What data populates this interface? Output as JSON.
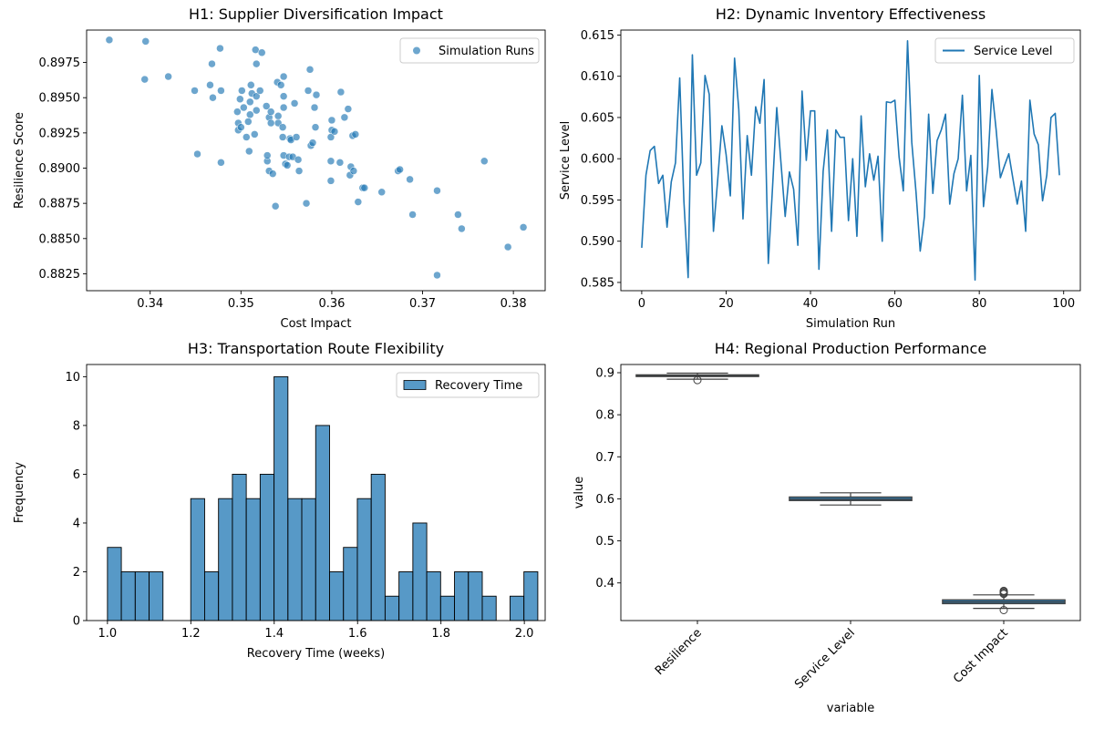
{
  "chart_data": [
    {
      "type": "scatter",
      "title": "H1: Supplier Diversification Impact",
      "xlabel": "Cost Impact",
      "ylabel": "Resilience Score",
      "xlim": [
        0.333,
        0.3835
      ],
      "ylim": [
        0.8813,
        0.8998
      ],
      "xticks": [
        0.34,
        0.35,
        0.36,
        0.37,
        0.38
      ],
      "xtick_labels": [
        "0.34",
        "0.35",
        "0.36",
        "0.37",
        "0.38"
      ],
      "yticks": [
        0.8825,
        0.885,
        0.8875,
        0.89,
        0.8925,
        0.895,
        0.8975
      ],
      "ytick_labels": [
        "0.8825",
        "0.8850",
        "0.8875",
        "0.8900",
        "0.8925",
        "0.8950",
        "0.8975"
      ],
      "legend": {
        "position": "upper right",
        "entries": [
          "Simulation Runs"
        ]
      },
      "color": "#1f77b4",
      "grid": false,
      "points": [
        [
          0.3355,
          0.8991
        ],
        [
          0.3395,
          0.899
        ],
        [
          0.3394,
          0.8963
        ],
        [
          0.342,
          0.8965
        ],
        [
          0.3449,
          0.8955
        ],
        [
          0.3452,
          0.891
        ],
        [
          0.3466,
          0.8959
        ],
        [
          0.3468,
          0.8974
        ],
        [
          0.3469,
          0.895
        ],
        [
          0.3477,
          0.8985
        ],
        [
          0.3478,
          0.8955
        ],
        [
          0.3478,
          0.8904
        ],
        [
          0.3496,
          0.894
        ],
        [
          0.3497,
          0.8932
        ],
        [
          0.3497,
          0.8927
        ],
        [
          0.3499,
          0.8949
        ],
        [
          0.35,
          0.8929
        ],
        [
          0.3501,
          0.8955
        ],
        [
          0.3503,
          0.8943
        ],
        [
          0.3506,
          0.8922
        ],
        [
          0.3508,
          0.8933
        ],
        [
          0.3509,
          0.8912
        ],
        [
          0.351,
          0.8947
        ],
        [
          0.351,
          0.8938
        ],
        [
          0.3511,
          0.8959
        ],
        [
          0.3512,
          0.8953
        ],
        [
          0.3515,
          0.8924
        ],
        [
          0.3516,
          0.8984
        ],
        [
          0.3517,
          0.8941
        ],
        [
          0.3517,
          0.8974
        ],
        [
          0.3517,
          0.8951
        ],
        [
          0.3521,
          0.8955
        ],
        [
          0.3523,
          0.8982
        ],
        [
          0.3528,
          0.8944
        ],
        [
          0.3529,
          0.8905
        ],
        [
          0.3529,
          0.8909
        ],
        [
          0.3531,
          0.8936
        ],
        [
          0.3531,
          0.8898
        ],
        [
          0.3533,
          0.894
        ],
        [
          0.3533,
          0.8932
        ],
        [
          0.3535,
          0.8896
        ],
        [
          0.3538,
          0.8873
        ],
        [
          0.354,
          0.8961
        ],
        [
          0.3541,
          0.8937
        ],
        [
          0.3541,
          0.8932
        ],
        [
          0.3544,
          0.8959
        ],
        [
          0.3546,
          0.8922
        ],
        [
          0.3546,
          0.8929
        ],
        [
          0.3547,
          0.8951
        ],
        [
          0.3547,
          0.8943
        ],
        [
          0.3547,
          0.8965
        ],
        [
          0.3547,
          0.8909
        ],
        [
          0.3549,
          0.8903
        ],
        [
          0.3551,
          0.8902
        ],
        [
          0.3553,
          0.8908
        ],
        [
          0.3554,
          0.8921
        ],
        [
          0.3555,
          0.892
        ],
        [
          0.3557,
          0.8908
        ],
        [
          0.3559,
          0.8946
        ],
        [
          0.3561,
          0.8922
        ],
        [
          0.3563,
          0.8906
        ],
        [
          0.3564,
          0.8898
        ],
        [
          0.3572,
          0.8875
        ],
        [
          0.3574,
          0.8955
        ],
        [
          0.3576,
          0.897
        ],
        [
          0.3577,
          0.8916
        ],
        [
          0.3579,
          0.8918
        ],
        [
          0.3581,
          0.8943
        ],
        [
          0.3582,
          0.8929
        ],
        [
          0.3583,
          0.8952
        ],
        [
          0.3599,
          0.8905
        ],
        [
          0.3599,
          0.8891
        ],
        [
          0.3599,
          0.8922
        ],
        [
          0.36,
          0.8934
        ],
        [
          0.36,
          0.8927
        ],
        [
          0.3603,
          0.8926
        ],
        [
          0.3609,
          0.8904
        ],
        [
          0.361,
          0.8954
        ],
        [
          0.3614,
          0.8936
        ],
        [
          0.3618,
          0.8942
        ],
        [
          0.362,
          0.8895
        ],
        [
          0.3621,
          0.8901
        ],
        [
          0.3623,
          0.8923
        ],
        [
          0.3624,
          0.8898
        ],
        [
          0.3626,
          0.8924
        ],
        [
          0.3629,
          0.8876
        ],
        [
          0.3634,
          0.8886
        ],
        [
          0.3636,
          0.8886
        ],
        [
          0.3655,
          0.8883
        ],
        [
          0.3673,
          0.8898
        ],
        [
          0.3675,
          0.8899
        ],
        [
          0.3686,
          0.8892
        ],
        [
          0.3689,
          0.8867
        ],
        [
          0.3716,
          0.8824
        ],
        [
          0.3716,
          0.8884
        ],
        [
          0.3739,
          0.8867
        ],
        [
          0.3743,
          0.8857
        ],
        [
          0.3768,
          0.8905
        ],
        [
          0.3794,
          0.8844
        ],
        [
          0.3811,
          0.8858
        ]
      ]
    },
    {
      "type": "line",
      "title": "H2: Dynamic Inventory Effectiveness",
      "xlabel": "Simulation Run",
      "ylabel": "Service Level",
      "xlim": [
        -4.95,
        103.95
      ],
      "ylim": [
        0.584,
        0.6156
      ],
      "xticks": [
        0,
        20,
        40,
        60,
        80,
        100
      ],
      "xtick_labels": [
        "0",
        "20",
        "40",
        "60",
        "80",
        "100"
      ],
      "yticks": [
        0.585,
        0.59,
        0.595,
        0.6,
        0.605,
        0.61,
        0.615
      ],
      "ytick_labels": [
        "0.585",
        "0.590",
        "0.595",
        "0.600",
        "0.605",
        "0.610",
        "0.615"
      ],
      "legend": {
        "position": "upper right",
        "entries": [
          "Service Level"
        ]
      },
      "color": "#1f77b4",
      "grid": false,
      "series": [
        {
          "name": "Service Level",
          "x_start": 0,
          "values": [
            0.5892,
            0.598,
            0.601,
            0.6015,
            0.597,
            0.598,
            0.5917,
            0.5972,
            0.5995,
            0.6098,
            0.5948,
            0.5856,
            0.6126,
            0.598,
            0.5995,
            0.6101,
            0.6078,
            0.5912,
            0.5974,
            0.604,
            0.6005,
            0.5955,
            0.6122,
            0.606,
            0.5927,
            0.6028,
            0.598,
            0.6063,
            0.6043,
            0.6096,
            0.5873,
            0.5965,
            0.6062,
            0.5995,
            0.593,
            0.5984,
            0.5963,
            0.5895,
            0.6082,
            0.5998,
            0.6058,
            0.6058,
            0.5866,
            0.5985,
            0.6035,
            0.5912,
            0.6035,
            0.6026,
            0.6026,
            0.5925,
            0.6,
            0.5906,
            0.6052,
            0.5966,
            0.6006,
            0.5974,
            0.6003,
            0.59,
            0.6069,
            0.6068,
            0.6071,
            0.6002,
            0.5961,
            0.6143,
            0.602,
            0.596,
            0.5888,
            0.593,
            0.6054,
            0.5958,
            0.6022,
            0.6035,
            0.6054,
            0.5945,
            0.5982,
            0.6,
            0.6077,
            0.5961,
            0.6004,
            0.5853,
            0.6101,
            0.5942,
            0.599,
            0.6084,
            0.6035,
            0.5977,
            0.5992,
            0.6006,
            0.5975,
            0.5945,
            0.5973,
            0.5912,
            0.6071,
            0.603,
            0.6017,
            0.5949,
            0.598,
            0.605,
            0.6055,
            0.598
          ]
        }
      ]
    },
    {
      "type": "bar",
      "subtype": "histogram",
      "title": "H3: Transportation Route Flexibility",
      "xlabel": "Recovery Time (weeks)",
      "ylabel": "Frequency",
      "xlim": [
        0.95,
        2.05
      ],
      "ylim": [
        0,
        10.5
      ],
      "xticks": [
        1.0,
        1.2,
        1.4,
        1.6,
        1.8,
        2.0
      ],
      "xtick_labels": [
        "1.0",
        "1.2",
        "1.4",
        "1.6",
        "1.8",
        "2.0"
      ],
      "yticks": [
        0,
        2,
        4,
        6,
        8,
        10
      ],
      "ytick_labels": [
        "0",
        "2",
        "4",
        "6",
        "8",
        "10"
      ],
      "legend": {
        "position": "upper right",
        "entries": [
          "Recovery Time"
        ]
      },
      "color": "#1f77b4",
      "grid": false,
      "bin_start": 1.0,
      "bin_width": 0.0333,
      "values": [
        3,
        2,
        2,
        2,
        0,
        0,
        5,
        2,
        5,
        6,
        5,
        6,
        10,
        5,
        5,
        8,
        2,
        3,
        5,
        6,
        1,
        2,
        4,
        2,
        1,
        2,
        2,
        1,
        0,
        1,
        2
      ]
    },
    {
      "type": "box",
      "title": "H4: Regional Production Performance",
      "xlabel": "variable",
      "ylabel": "value",
      "ylim": [
        0.3105,
        0.9195
      ],
      "yticks": [
        0.4,
        0.5,
        0.6,
        0.7,
        0.8,
        0.9
      ],
      "ytick_labels": [
        "0.4",
        "0.5",
        "0.6",
        "0.7",
        "0.8",
        "0.9"
      ],
      "categories": [
        "Resilience",
        "Service Level",
        "Cost Impact"
      ],
      "box_color": "#3274a1",
      "grid": false,
      "boxes": [
        {
          "whislo": 0.8845,
          "q1": 0.8908,
          "med": 0.8929,
          "q3": 0.895,
          "whishi": 0.8991,
          "fliers": [
            0.8824
          ]
        },
        {
          "whislo": 0.5853,
          "q1": 0.5958,
          "med": 0.599,
          "q3": 0.6045,
          "whishi": 0.6143,
          "fliers": []
        },
        {
          "whislo": 0.3395,
          "q1": 0.3506,
          "med": 0.3547,
          "q3": 0.3599,
          "whishi": 0.3716,
          "fliers": [
            0.3355,
            0.3768,
            0.3794,
            0.3811,
            0.3739,
            0.3743
          ]
        }
      ]
    }
  ]
}
